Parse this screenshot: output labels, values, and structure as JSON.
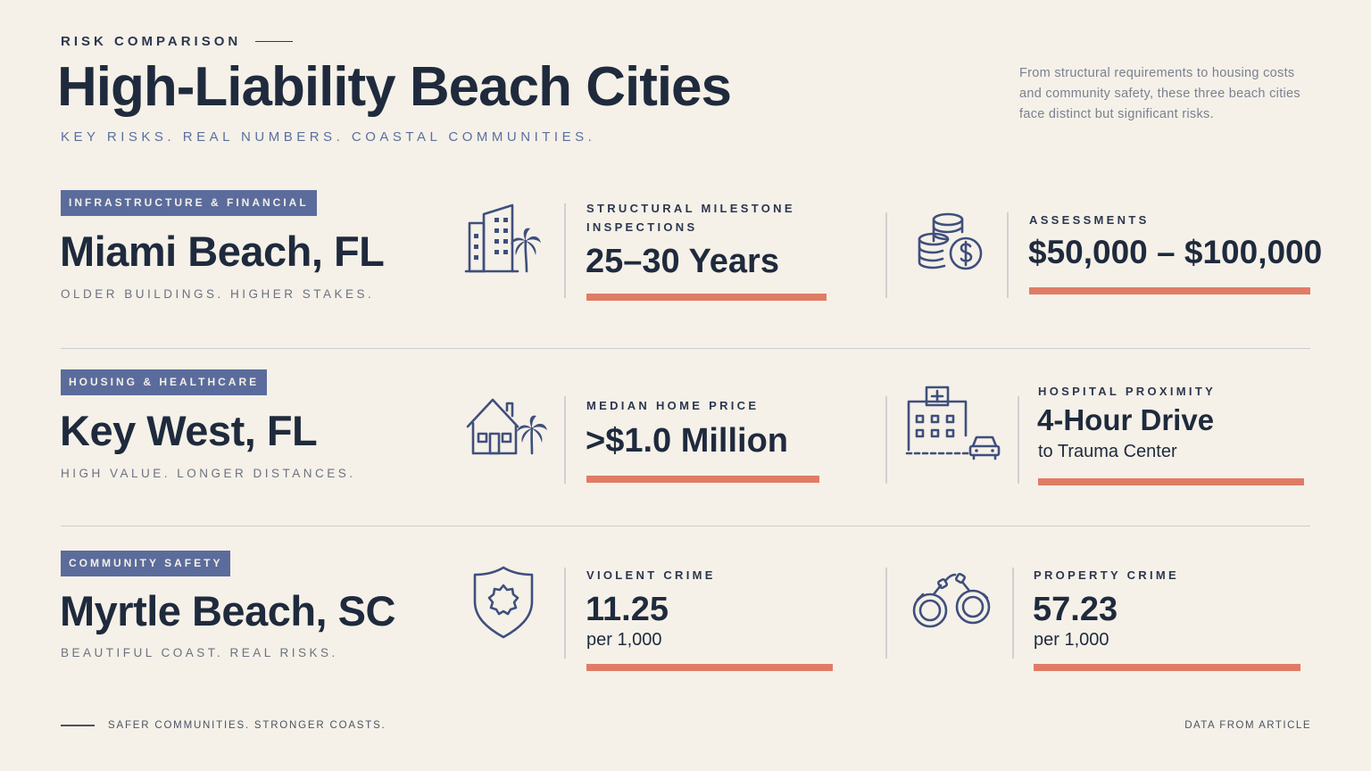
{
  "header": {
    "eyebrow": "RISK COMPARISON",
    "title": "High-Liability Beach Cities",
    "subtitle": "KEY RISKS. REAL NUMBERS. COASTAL COMMUNITIES.",
    "intro": "From structural requirements to housing costs and community safety, these three beach cities face distinct but significant risks."
  },
  "rows": [
    {
      "tag": "INFRASTRUCTURE & FINANCIAL",
      "city": "Miami Beach, FL",
      "tagline": "OLDER BUILDINGS. HIGHER STAKES.",
      "metrics": [
        {
          "icon": "building-palm-icon",
          "label": "STRUCTURAL MILESTONE INSPECTIONS",
          "value": "25–30 Years",
          "unit": ""
        },
        {
          "icon": "coins-dollar-icon",
          "label": "ASSESSMENTS",
          "value": "$50,000 – $100,000",
          "unit": ""
        }
      ]
    },
    {
      "tag": "HOUSING & HEALTHCARE",
      "city": "Key West, FL",
      "tagline": "HIGH VALUE. LONGER DISTANCES.",
      "metrics": [
        {
          "icon": "house-palm-icon",
          "label": "MEDIAN HOME PRICE",
          "value": ">$1.0 Million",
          "unit": ""
        },
        {
          "icon": "hospital-car-icon",
          "label": "HOSPITAL PROXIMITY",
          "value": "4-Hour Drive",
          "unit": "to Trauma Center"
        }
      ]
    },
    {
      "tag": "COMMUNITY SAFETY",
      "city": "Myrtle Beach, SC",
      "tagline": "BEAUTIFUL COAST. REAL RISKS.",
      "metrics": [
        {
          "icon": "shield-badge-icon",
          "label": "VIOLENT CRIME",
          "value": "11.25",
          "unit": "per 1,000"
        },
        {
          "icon": "handcuffs-icon",
          "label": "PROPERTY CRIME",
          "value": "57.23",
          "unit": "per 1,000"
        }
      ]
    }
  ],
  "footer": {
    "left": "SAFER COMMUNITIES. STRONGER COASTS.",
    "right": "DATA FROM ARTICLE"
  },
  "colors": {
    "background": "#f5f1e8",
    "navy": "#1f2a3d",
    "tag": "#5b6c9c",
    "accent_bar": "#e07c66",
    "icon": "#3f4f7d"
  }
}
